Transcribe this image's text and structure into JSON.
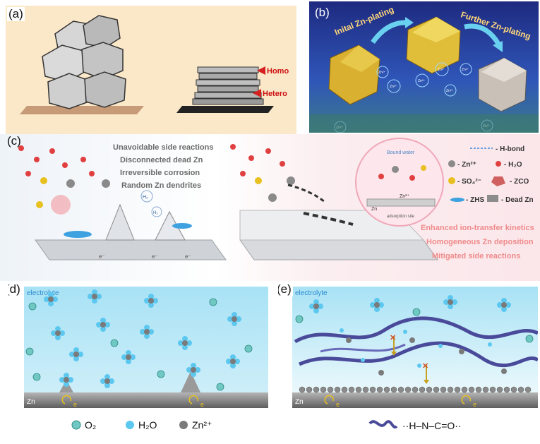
{
  "panels": {
    "a": {
      "label": "(a)",
      "homo": "Homo",
      "hetero": "Hetero"
    },
    "b": {
      "label": "(b)",
      "step1": "Inital Zn-plating",
      "step2": "Further Zn-plating",
      "ion": "Zn²⁺"
    },
    "c": {
      "label": "(c)",
      "left_lines": [
        "Unavoidable side reactions",
        "Disconnected dead Zn",
        "Irreversible corrosion",
        "Random Zn dendrites"
      ],
      "h2": "H₂",
      "electron": "e⁻",
      "bound_water": "Bound water",
      "zn2_inset": "Zn²⁺",
      "zn_inset": "Zn",
      "adsorption_site": "adsorption site",
      "right_lines": [
        "Enhanced ion-transfer kinetics",
        "Homogeneous Zn deposition",
        "Mitigated side reactions"
      ],
      "legend": {
        "hbond": "- H-bond",
        "zn2": "- Zn²⁺",
        "h2o": "- H₂O",
        "so4": "- SO₄²⁻",
        "zco": "- ZCO",
        "zhs": "- ZHS",
        "deadzn": "- Dead Zn"
      }
    },
    "d": {
      "label": "(d)",
      "electrolyte": "electrolyte",
      "zn": "Zn",
      "e": "e"
    },
    "e": {
      "label": "(e)",
      "electrolyte": "electrolyte",
      "zn": "Zn",
      "e": "e"
    }
  },
  "legend_bottom": {
    "o2": "O₂",
    "h2o": "H₂O",
    "zn2": "Zn²⁺",
    "formula": "··H–N–C=O··"
  },
  "colors": {
    "panel_a_bg": "#fbe8c8",
    "panel_b_bg": "#1b2f8a",
    "electrolyte_top": "#a8e2f5",
    "electrolyte_bottom": "#d9f2fb",
    "zn_substrate": "#8e8e8e",
    "polymer": "#4a4a9a",
    "water_blue": "#5cc8f0",
    "o2_teal": "#6fc9c2",
    "highlight_red": "#e8605f"
  }
}
